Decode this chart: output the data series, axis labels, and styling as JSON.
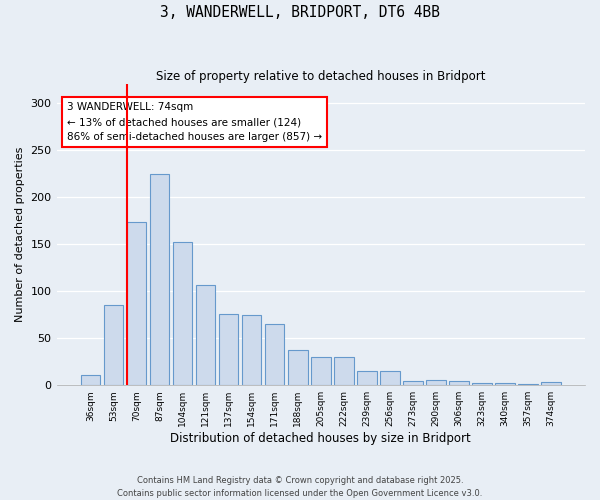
{
  "title": "3, WANDERWELL, BRIDPORT, DT6 4BB",
  "subtitle": "Size of property relative to detached houses in Bridport",
  "xlabel": "Distribution of detached houses by size in Bridport",
  "ylabel": "Number of detached properties",
  "categories": [
    "36sqm",
    "53sqm",
    "70sqm",
    "87sqm",
    "104sqm",
    "121sqm",
    "137sqm",
    "154sqm",
    "171sqm",
    "188sqm",
    "205sqm",
    "222sqm",
    "239sqm",
    "256sqm",
    "273sqm",
    "290sqm",
    "306sqm",
    "323sqm",
    "340sqm",
    "357sqm",
    "374sqm"
  ],
  "values": [
    11,
    85,
    174,
    225,
    152,
    106,
    76,
    75,
    65,
    37,
    30,
    30,
    15,
    15,
    5,
    6,
    5,
    2,
    2,
    1,
    3
  ],
  "bar_color": "#cddaec",
  "bar_edge_color": "#6699cc",
  "red_line_index": 2,
  "annotation_title": "3 WANDERWELL: 74sqm",
  "annotation_line1": "← 13% of detached houses are smaller (124)",
  "annotation_line2": "86% of semi-detached houses are larger (857) →",
  "footer1": "Contains HM Land Registry data © Crown copyright and database right 2025.",
  "footer2": "Contains public sector information licensed under the Open Government Licence v3.0.",
  "ylim": [
    0,
    320
  ],
  "background_color": "#e8eef5"
}
